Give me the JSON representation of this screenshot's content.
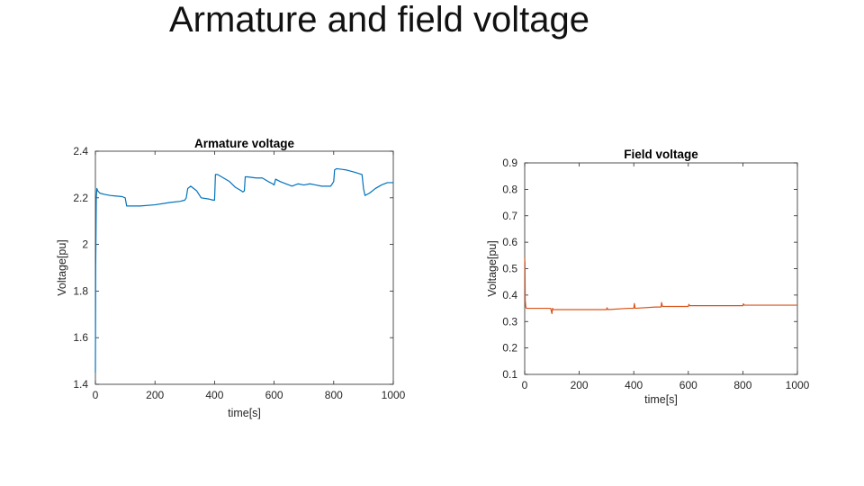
{
  "slide": {
    "title": "Armature and field voltage"
  },
  "chart_data": [
    {
      "type": "line",
      "title": "Armature voltage",
      "xlabel": "time[s]",
      "ylabel": "Voltage[pu]",
      "xlim": [
        0,
        1000
      ],
      "ylim": [
        1.4,
        2.4
      ],
      "xticks": [
        0,
        200,
        400,
        600,
        800,
        1000
      ],
      "yticks": [
        1.4,
        1.6,
        1.8,
        2,
        2.2,
        2.4
      ],
      "grid": false,
      "color": "#0072bd",
      "series": [
        {
          "x": [
            0,
            1,
            2,
            3,
            5,
            8,
            15,
            30,
            50,
            90,
            100,
            105,
            150,
            200,
            250,
            285,
            300,
            305,
            310,
            320,
            340,
            350,
            355,
            380,
            395,
            400,
            403,
            410,
            430,
            450,
            470,
            490,
            495,
            500,
            503,
            510,
            540,
            560,
            580,
            595,
            600,
            605,
            620,
            640,
            650,
            660,
            680,
            700,
            720,
            740,
            760,
            790,
            795,
            800,
            803,
            810,
            840,
            870,
            895,
            900,
            905,
            920,
            940,
            960,
            980,
            1000
          ],
          "y": [
            1.45,
            1.9,
            2.05,
            2.2,
            2.24,
            2.23,
            2.22,
            2.215,
            2.21,
            2.205,
            2.2,
            2.165,
            2.165,
            2.17,
            2.18,
            2.185,
            2.19,
            2.2,
            2.24,
            2.25,
            2.23,
            2.21,
            2.2,
            2.195,
            2.19,
            2.19,
            2.3,
            2.3,
            2.285,
            2.27,
            2.245,
            2.23,
            2.225,
            2.23,
            2.29,
            2.29,
            2.285,
            2.285,
            2.27,
            2.26,
            2.255,
            2.28,
            2.27,
            2.26,
            2.255,
            2.25,
            2.26,
            2.255,
            2.26,
            2.255,
            2.25,
            2.25,
            2.26,
            2.27,
            2.32,
            2.325,
            2.32,
            2.31,
            2.3,
            2.24,
            2.21,
            2.22,
            2.24,
            2.255,
            2.265,
            2.265
          ]
        }
      ]
    },
    {
      "type": "line",
      "title": "Field voltage",
      "xlabel": "time[s]",
      "ylabel": "Voltage[pu]",
      "xlim": [
        0,
        1000
      ],
      "ylim": [
        0.1,
        0.9
      ],
      "xticks": [
        0,
        200,
        400,
        600,
        800,
        1000
      ],
      "yticks": [
        0.1,
        0.2,
        0.3,
        0.4,
        0.5,
        0.6,
        0.7,
        0.8,
        0.9
      ],
      "grid": false,
      "color": "#d95319",
      "series": [
        {
          "x": [
            0,
            1,
            2,
            4,
            6,
            10,
            20,
            50,
            95,
            100,
            102,
            105,
            150,
            200,
            280,
            300,
            302,
            305,
            380,
            400,
            402,
            405,
            480,
            500,
            502,
            505,
            580,
            600,
            602,
            605,
            700,
            800,
            802,
            805,
            900,
            1000
          ],
          "y": [
            0.54,
            0.52,
            0.38,
            0.355,
            0.35,
            0.35,
            0.35,
            0.35,
            0.35,
            0.33,
            0.35,
            0.345,
            0.345,
            0.345,
            0.345,
            0.345,
            0.352,
            0.345,
            0.35,
            0.35,
            0.368,
            0.35,
            0.355,
            0.355,
            0.372,
            0.357,
            0.357,
            0.357,
            0.365,
            0.36,
            0.36,
            0.36,
            0.367,
            0.362,
            0.362,
            0.362
          ]
        }
      ]
    }
  ]
}
